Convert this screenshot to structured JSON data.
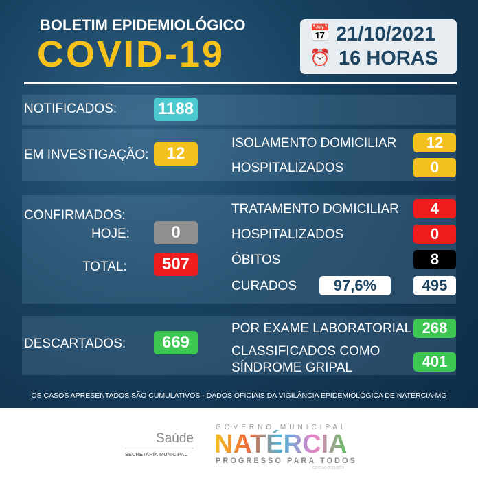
{
  "header": {
    "title": "BOLETIM EPIDEMIOLÓGICO",
    "subtitle": "COVID-19",
    "date": "21/10/2021",
    "time": "16 HORAS",
    "date_icon": "calendar-icon",
    "time_icon": "alarm-clock-icon"
  },
  "notificados": {
    "label": "NOTIFICADOS:",
    "value": "1188",
    "color": "#4cc9cf"
  },
  "investigacao": {
    "label": "EM INVESTIGAÇÃO:",
    "value": "12",
    "color": "#f4c01e",
    "items": [
      {
        "label": "ISOLAMENTO DOMICILIAR",
        "value": "12",
        "color": "#f4c01e"
      },
      {
        "label": "HOSPITALIZADOS",
        "value": "0",
        "color": "#f4c01e"
      }
    ]
  },
  "confirmados": {
    "label": "CONFIRMADOS:",
    "hoje_label": "HOJE:",
    "hoje_value": "0",
    "total_label": "TOTAL:",
    "total_value": "507",
    "items": [
      {
        "label": "TRATAMENTO DOMICILIAR",
        "value": "4",
        "color": "#ee1c1c"
      },
      {
        "label": "HOSPITALIZADOS",
        "value": "0",
        "color": "#ee1c1c"
      },
      {
        "label": "ÓBITOS",
        "value": "8",
        "color": "#000000"
      },
      {
        "label": "CURADOS",
        "value": "495",
        "color": "#ffffff"
      }
    ],
    "curados_percent": "97,6%"
  },
  "descartados": {
    "label": "DESCARTADOS:",
    "value": "669",
    "color": "#3ec653",
    "items": [
      {
        "label": "POR EXAME LABORATORIAL",
        "value": "268"
      },
      {
        "label_line1": "CLASSIFICADOS COMO",
        "label_line2": "SÍNDROME GRIPAL",
        "value": "401"
      }
    ]
  },
  "footer": {
    "note": "OS CASOS APRESENTADOS SÃO CUMULATIVOS - DADOS OFICIAIS DA VIGILÂNCIA EPIDEMIOLÓGICA DE NATÉRCIA-MG"
  },
  "logos": {
    "saude": "Saúde",
    "secretaria": "SECRETARIA MUNICIPAL",
    "governo": "GOVERNO MUNICIPAL",
    "city": "NATÉRCIA",
    "slogan": "PROGRESSO PARA TODOS",
    "gestao": "GESTÃO 2021/2024"
  }
}
